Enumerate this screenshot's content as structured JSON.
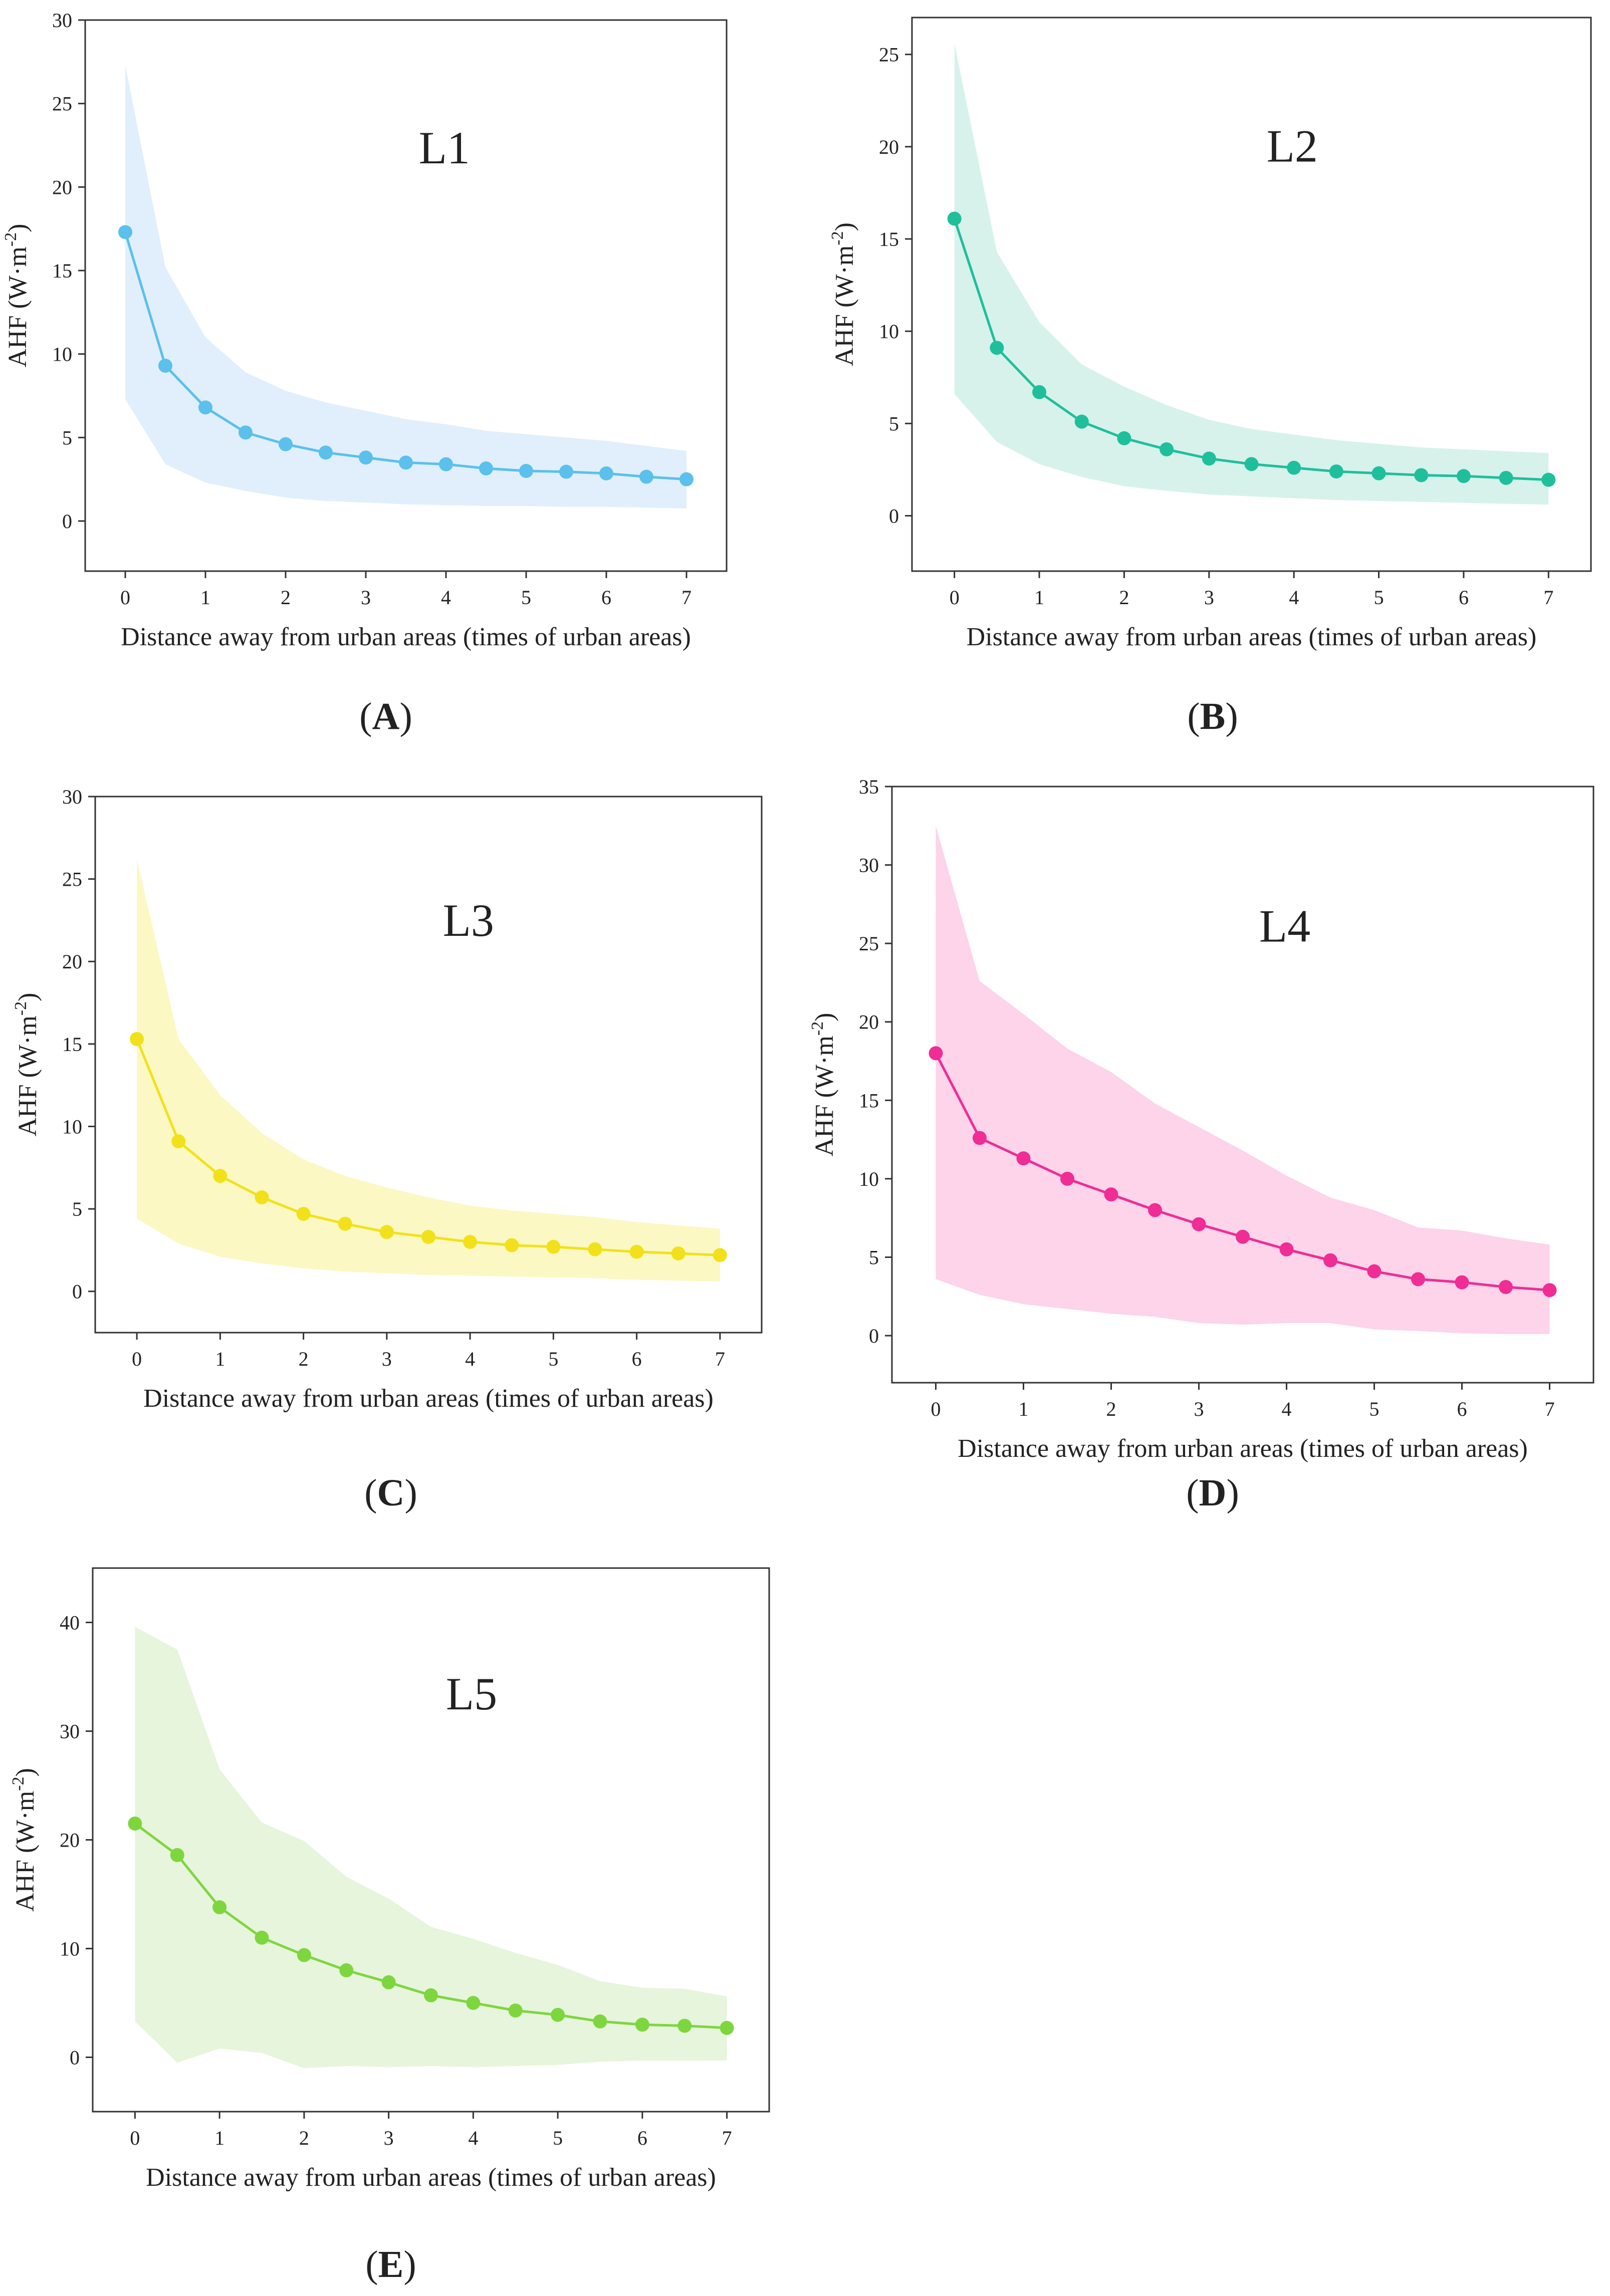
{
  "figure": {
    "type": "multi-panel line chart with shaded range bands"
  },
  "chart_data": [
    {
      "type": "line",
      "panel_label": "A",
      "title": "L1",
      "xlabel": "Distance away from urban areas (times of urban areas)",
      "ylabel": "AHF (W·m-2)",
      "ylabel_main": "AHF (W·m",
      "ylabel_sup": "-2",
      "ylabel_tail": ")",
      "x": [
        0,
        0.5,
        1,
        1.5,
        2,
        2.5,
        3,
        3.5,
        4,
        4.5,
        5,
        5.5,
        6,
        6.5,
        7
      ],
      "values": [
        17.3,
        9.3,
        6.8,
        5.3,
        4.6,
        4.1,
        3.8,
        3.5,
        3.4,
        3.15,
        3.0,
        2.95,
        2.85,
        2.65,
        2.5
      ],
      "upper": [
        27.3,
        15.2,
        11.0,
        8.9,
        7.8,
        7.1,
        6.6,
        6.1,
        5.8,
        5.4,
        5.2,
        5.0,
        4.8,
        4.5,
        4.2
      ],
      "lower": [
        7.3,
        3.4,
        2.3,
        1.8,
        1.4,
        1.2,
        1.1,
        1.0,
        0.95,
        0.9,
        0.9,
        0.85,
        0.85,
        0.8,
        0.75
      ],
      "xlim": [
        -0.5,
        7.5
      ],
      "ylim": [
        -3,
        30
      ],
      "xticks": [
        0,
        1,
        2,
        3,
        4,
        5,
        6,
        7
      ],
      "yticks": [
        0,
        5,
        10,
        15,
        20,
        25,
        30
      ],
      "line_color": "#5bc0eb",
      "band_color": "#e0effb"
    },
    {
      "type": "line",
      "panel_label": "B",
      "title": "L2",
      "xlabel": "Distance away from urban areas (times of urban areas)",
      "ylabel": "AHF (W·m-2)",
      "ylabel_main": "AHF (W·m",
      "ylabel_sup": "-2",
      "ylabel_tail": ")",
      "x": [
        0,
        0.5,
        1,
        1.5,
        2,
        2.5,
        3,
        3.5,
        4,
        4.5,
        5,
        5.5,
        6,
        6.5,
        7
      ],
      "values": [
        16.1,
        9.1,
        6.7,
        5.1,
        4.2,
        3.6,
        3.1,
        2.8,
        2.6,
        2.4,
        2.3,
        2.2,
        2.15,
        2.05,
        1.95
      ],
      "upper": [
        25.6,
        14.3,
        10.5,
        8.2,
        7.0,
        6.0,
        5.2,
        4.7,
        4.4,
        4.1,
        3.9,
        3.7,
        3.6,
        3.5,
        3.4
      ],
      "lower": [
        6.6,
        4.0,
        2.8,
        2.1,
        1.6,
        1.35,
        1.15,
        1.05,
        0.95,
        0.85,
        0.8,
        0.75,
        0.7,
        0.65,
        0.6
      ],
      "xlim": [
        -0.5,
        7.5
      ],
      "ylim": [
        -3,
        27
      ],
      "xticks": [
        0,
        1,
        2,
        3,
        4,
        5,
        6,
        7
      ],
      "yticks": [
        0,
        5,
        10,
        15,
        20,
        25
      ],
      "line_color": "#1fbf9c",
      "band_color": "#d7f2eb"
    },
    {
      "type": "line",
      "panel_label": "C",
      "title": "L3",
      "xlabel": "Distance away from urban areas (times of urban areas)",
      "ylabel": "AHF (W·m-2)",
      "ylabel_main": "AHF (W·m",
      "ylabel_sup": "-2",
      "ylabel_tail": ")",
      "x": [
        0,
        0.5,
        1,
        1.5,
        2,
        2.5,
        3,
        3.5,
        4,
        4.5,
        5,
        5.5,
        6,
        6.5,
        7
      ],
      "values": [
        15.3,
        9.1,
        7.0,
        5.7,
        4.7,
        4.1,
        3.6,
        3.3,
        3.0,
        2.8,
        2.7,
        2.55,
        2.4,
        2.3,
        2.2
      ],
      "upper": [
        26.2,
        15.3,
        11.9,
        9.6,
        8.0,
        7.0,
        6.3,
        5.7,
        5.2,
        4.9,
        4.7,
        4.5,
        4.2,
        4.0,
        3.8
      ],
      "lower": [
        4.4,
        2.9,
        2.1,
        1.7,
        1.4,
        1.2,
        1.1,
        1.0,
        0.95,
        0.9,
        0.85,
        0.8,
        0.7,
        0.65,
        0.6
      ],
      "xlim": [
        -0.5,
        7.5
      ],
      "ylim": [
        -2.5,
        30
      ],
      "xticks": [
        0,
        1,
        2,
        3,
        4,
        5,
        6,
        7
      ],
      "yticks": [
        0,
        5,
        10,
        15,
        20,
        25,
        30
      ],
      "line_color": "#f2e11a",
      "band_color": "#fbf8c3"
    },
    {
      "type": "line",
      "panel_label": "D",
      "title": "L4",
      "xlabel": "Distance away from urban areas (times of urban areas)",
      "ylabel": "AHF (W·m-2)",
      "ylabel_main": "AHF (W·m",
      "ylabel_sup": "-2",
      "ylabel_tail": ")",
      "x": [
        0,
        0.5,
        1,
        1.5,
        2,
        2.5,
        3,
        3.5,
        4,
        4.5,
        5,
        5.5,
        6,
        6.5,
        7
      ],
      "values": [
        18.0,
        12.6,
        11.3,
        10.0,
        9.0,
        8.0,
        7.1,
        6.3,
        5.5,
        4.8,
        4.1,
        3.6,
        3.4,
        3.1,
        2.9
      ],
      "upper": [
        32.5,
        22.6,
        20.5,
        18.3,
        16.8,
        14.8,
        13.3,
        11.8,
        10.2,
        8.8,
        8.0,
        6.9,
        6.7,
        6.2,
        5.8
      ],
      "lower": [
        3.6,
        2.6,
        2.0,
        1.7,
        1.4,
        1.2,
        0.8,
        0.7,
        0.8,
        0.8,
        0.4,
        0.3,
        0.15,
        0.1,
        0.1
      ],
      "xlim": [
        -0.5,
        7.5
      ],
      "ylim": [
        -3,
        35
      ],
      "xticks": [
        0,
        1,
        2,
        3,
        4,
        5,
        6,
        7
      ],
      "yticks": [
        0,
        5,
        10,
        15,
        20,
        25,
        30,
        35
      ],
      "line_color": "#ef2d95",
      "band_color": "#fdd4ea"
    },
    {
      "type": "line",
      "panel_label": "E",
      "title": "L5",
      "xlabel": "Distance away from urban areas (times of urban areas)",
      "ylabel": "AHF (W·m-2)",
      "ylabel_main": "AHF (W·m",
      "ylabel_sup": "-2",
      "ylabel_tail": ")",
      "x": [
        0,
        0.5,
        1,
        1.5,
        2,
        2.5,
        3,
        3.5,
        4,
        4.5,
        5,
        5.5,
        6,
        6.5,
        7
      ],
      "values": [
        21.5,
        18.6,
        13.8,
        11.0,
        9.4,
        8.0,
        6.9,
        5.7,
        5.0,
        4.3,
        3.9,
        3.3,
        3.0,
        2.9,
        2.7
      ],
      "upper": [
        39.6,
        37.5,
        26.5,
        21.6,
        19.9,
        16.6,
        14.6,
        12.0,
        10.9,
        9.6,
        8.5,
        7.0,
        6.4,
        6.3,
        5.6
      ],
      "lower": [
        3.3,
        -0.5,
        0.8,
        0.4,
        -1.0,
        -0.8,
        -0.9,
        -0.8,
        -0.9,
        -0.8,
        -0.7,
        -0.4,
        -0.3,
        -0.3,
        -0.3
      ],
      "xlim": [
        -0.5,
        7.5
      ],
      "ylim": [
        -5,
        45
      ],
      "xticks": [
        0,
        1,
        2,
        3,
        4,
        5,
        6,
        7
      ],
      "yticks": [
        0,
        10,
        20,
        30,
        40
      ],
      "line_color": "#7ed63f",
      "band_color": "#e6f5dc"
    }
  ]
}
